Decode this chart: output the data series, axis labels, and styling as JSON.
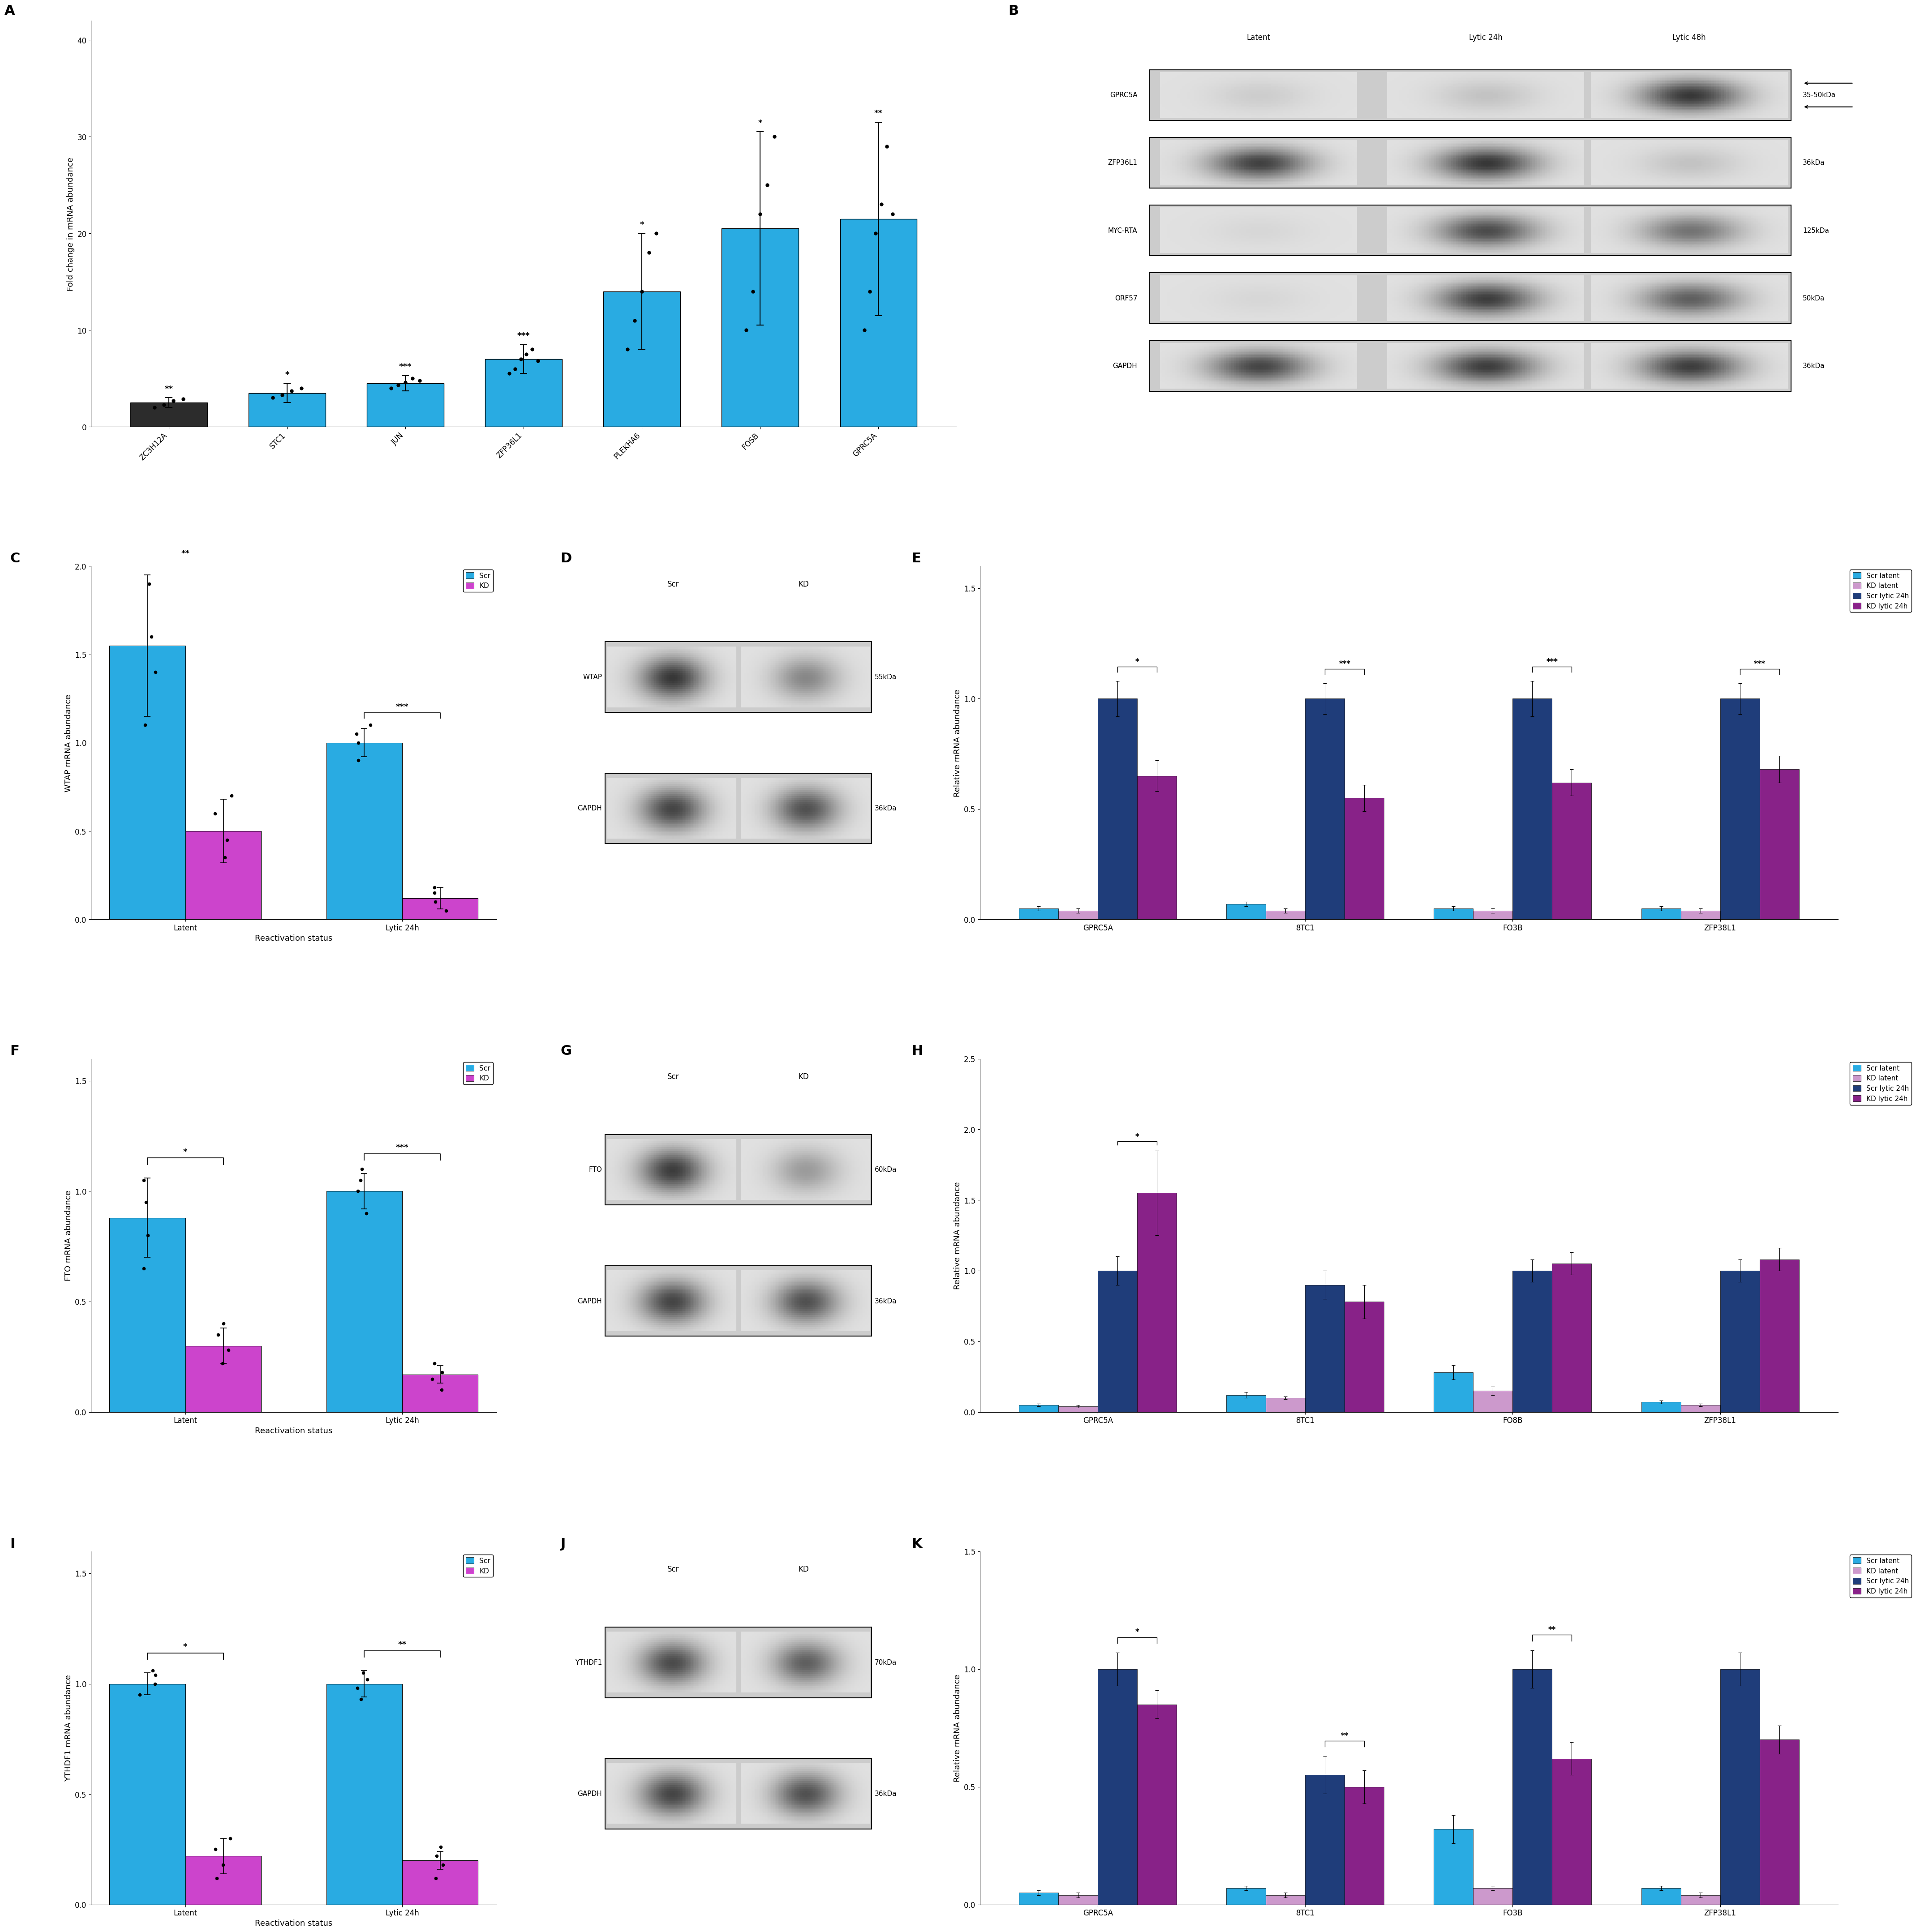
{
  "panel_A": {
    "categories": [
      "ZC3H12A",
      "STC1",
      "JUN",
      "ZFP36L1",
      "PLEKHA6",
      "FOSB",
      "GPRC5A"
    ],
    "values": [
      2.5,
      3.5,
      4.5,
      7.0,
      14.0,
      20.5,
      21.5
    ],
    "errors": [
      0.5,
      1.0,
      0.8,
      1.5,
      6.0,
      10.0,
      10.0
    ],
    "bar_colors": [
      "#2C2C2C",
      "#29ABE2",
      "#29ABE2",
      "#29ABE2",
      "#29ABE2",
      "#29ABE2",
      "#29ABE2"
    ],
    "scatter_points": [
      [
        2.0,
        2.3,
        2.7,
        2.9
      ],
      [
        3.0,
        3.3,
        3.7,
        4.0
      ],
      [
        4.0,
        4.3,
        4.6,
        5.0,
        4.8
      ],
      [
        5.5,
        6.0,
        7.0,
        7.5,
        8.0,
        6.8
      ],
      [
        8.0,
        11.0,
        14.0,
        18.0,
        20.0
      ],
      [
        10.0,
        14.0,
        22.0,
        25.0,
        30.0
      ],
      [
        10.0,
        14.0,
        20.0,
        23.0,
        29.0,
        22.0
      ]
    ],
    "significance": [
      "**",
      "*",
      "***",
      "***",
      "*",
      "*",
      "**"
    ],
    "ylabel": "Fold change in mRNA abundance",
    "ylim": [
      0,
      42
    ],
    "yticks": [
      0,
      10,
      20,
      30,
      40
    ]
  },
  "panel_C": {
    "groups": [
      "Latent",
      "Lytic 24h"
    ],
    "values": [
      [
        1.55,
        0.5
      ],
      [
        1.0,
        0.12
      ]
    ],
    "errors": [
      [
        0.4,
        0.18
      ],
      [
        0.08,
        0.06
      ]
    ],
    "scatter": [
      [
        [
          1.1,
          1.4,
          1.6,
          1.9
        ],
        [
          0.35,
          0.45,
          0.6,
          0.7
        ]
      ],
      [
        [
          0.9,
          1.0,
          1.05,
          1.1
        ],
        [
          0.05,
          0.1,
          0.15,
          0.18
        ]
      ]
    ],
    "colors": [
      "#29ABE2",
      "#CC44CC"
    ],
    "ylabel": "WTAP mRNA abundance",
    "ylim": [
      0,
      2.0
    ],
    "yticks": [
      0.0,
      0.5,
      1.0,
      1.5,
      2.0
    ],
    "xlabel": "Reactivation status",
    "significance_between": [
      "**",
      "***"
    ],
    "legend": [
      "Scr",
      "KD"
    ]
  },
  "panel_E": {
    "gene_groups": [
      "GPRC5A",
      "8TC1",
      "FO3B",
      "ZFP38L1"
    ],
    "bar_values": [
      [
        0.05,
        0.04,
        1.0,
        0.65
      ],
      [
        0.07,
        0.04,
        1.0,
        0.55
      ],
      [
        0.05,
        0.04,
        1.0,
        0.62
      ],
      [
        0.05,
        0.04,
        1.0,
        0.68
      ]
    ],
    "errors": [
      [
        0.01,
        0.01,
        0.08,
        0.07
      ],
      [
        0.01,
        0.01,
        0.07,
        0.06
      ],
      [
        0.01,
        0.01,
        0.08,
        0.06
      ],
      [
        0.01,
        0.01,
        0.07,
        0.06
      ]
    ],
    "colors": [
      "#29ABE2",
      "#CC99CC",
      "#1F3D7A",
      "#882288"
    ],
    "ylabel": "Relative mRNA abundance",
    "ylim": [
      0,
      1.6
    ],
    "yticks": [
      0.0,
      0.5,
      1.0,
      1.5
    ],
    "legend": [
      "Scr latent",
      "KD latent",
      "Scr lytic 24h",
      "KD lytic 24h"
    ],
    "significance": [
      "*",
      "***",
      "***",
      "***"
    ]
  },
  "panel_F": {
    "groups": [
      "Latent",
      "Lytic 24h"
    ],
    "values": [
      [
        0.88,
        0.3
      ],
      [
        1.0,
        0.17
      ]
    ],
    "errors": [
      [
        0.18,
        0.08
      ],
      [
        0.08,
        0.04
      ]
    ],
    "scatter": [
      [
        [
          0.65,
          0.8,
          0.95,
          1.05
        ],
        [
          0.22,
          0.28,
          0.35,
          0.4
        ]
      ],
      [
        [
          0.9,
          1.0,
          1.05,
          1.1
        ],
        [
          0.1,
          0.15,
          0.18,
          0.22
        ]
      ]
    ],
    "colors": [
      "#29ABE2",
      "#CC44CC"
    ],
    "ylabel": "FTO mRNA abundance",
    "ylim": [
      0,
      1.6
    ],
    "yticks": [
      0.0,
      0.5,
      1.0,
      1.5
    ],
    "xlabel": "Reactivation status",
    "significance_between": [
      "*",
      "***"
    ],
    "legend": [
      "Scr",
      "KD"
    ]
  },
  "panel_H": {
    "gene_groups": [
      "GPRC5A",
      "8TC1",
      "FO8B",
      "ZFP38L1"
    ],
    "bar_values": [
      [
        0.05,
        0.04,
        1.0,
        1.55
      ],
      [
        0.12,
        0.1,
        0.9,
        0.78
      ],
      [
        0.28,
        0.15,
        1.0,
        1.05
      ],
      [
        0.07,
        0.05,
        1.0,
        1.08
      ]
    ],
    "errors": [
      [
        0.01,
        0.01,
        0.1,
        0.3
      ],
      [
        0.02,
        0.01,
        0.1,
        0.12
      ],
      [
        0.05,
        0.03,
        0.08,
        0.08
      ],
      [
        0.01,
        0.01,
        0.08,
        0.08
      ]
    ],
    "colors": [
      "#29ABE2",
      "#CC99CC",
      "#1F3D7A",
      "#882288"
    ],
    "ylabel": "Relative mRNA abundance",
    "ylim": [
      0,
      2.5
    ],
    "yticks": [
      0.0,
      0.5,
      1.0,
      1.5,
      2.0,
      2.5
    ],
    "legend": [
      "Scr latent",
      "KD latent",
      "Scr lytic 24h",
      "KD lytic 24h"
    ],
    "significance": [
      "*",
      null,
      null,
      null
    ]
  },
  "panel_I": {
    "groups": [
      "Latent",
      "Lytic 24h"
    ],
    "values": [
      [
        1.0,
        0.22
      ],
      [
        1.0,
        0.2
      ]
    ],
    "errors": [
      [
        0.05,
        0.08
      ],
      [
        0.06,
        0.04
      ]
    ],
    "scatter": [
      [
        [
          0.95,
          1.0,
          1.04,
          1.06
        ],
        [
          0.12,
          0.18,
          0.25,
          0.3
        ]
      ],
      [
        [
          0.93,
          0.98,
          1.02,
          1.05
        ],
        [
          0.12,
          0.18,
          0.22,
          0.26
        ]
      ]
    ],
    "colors": [
      "#29ABE2",
      "#CC44CC"
    ],
    "ylabel": "YTHDF1 mRNA abundance",
    "ylim": [
      0,
      1.6
    ],
    "yticks": [
      0.0,
      0.5,
      1.0,
      1.5
    ],
    "xlabel": "Reactivation status",
    "significance_between": [
      "*",
      "**"
    ],
    "legend": [
      "Scr",
      "KD"
    ]
  },
  "panel_K": {
    "gene_groups": [
      "GPRC5A",
      "8TC1",
      "FO3B",
      "ZFP38L1"
    ],
    "bar_values": [
      [
        0.05,
        0.04,
        1.0,
        0.85
      ],
      [
        0.07,
        0.04,
        0.55,
        0.5
      ],
      [
        0.32,
        0.07,
        1.0,
        0.62
      ],
      [
        0.07,
        0.04,
        1.0,
        0.7
      ]
    ],
    "errors": [
      [
        0.01,
        0.01,
        0.07,
        0.06
      ],
      [
        0.01,
        0.01,
        0.08,
        0.07
      ],
      [
        0.06,
        0.01,
        0.08,
        0.07
      ],
      [
        0.01,
        0.01,
        0.07,
        0.06
      ]
    ],
    "colors": [
      "#29ABE2",
      "#CC99CC",
      "#1F3D7A",
      "#882288"
    ],
    "ylabel": "Relative mRNA abundance",
    "ylim": [
      0,
      1.5
    ],
    "yticks": [
      0.0,
      0.5,
      1.0,
      1.5
    ],
    "legend": [
      "Scr latent",
      "KD latent",
      "Scr lytic 24h",
      "KD lytic 24h"
    ],
    "significance": [
      "*",
      "**",
      "**",
      null
    ]
  },
  "panel_B": {
    "col_labels": [
      "Latent",
      "Lytic 24h",
      "Lytic 48h"
    ],
    "rows": [
      {
        "label": "GPRC5A",
        "right": "35-50kDa",
        "lanes": [
          0.1,
          0.15,
          0.85
        ],
        "double_arrow": true
      },
      {
        "label": "ZFP36L1",
        "right": "36kDa",
        "lanes": [
          0.8,
          0.85,
          0.15
        ],
        "double_arrow": false
      },
      {
        "label": "MYC-RTA",
        "right": "125kDa",
        "lanes": [
          0.05,
          0.75,
          0.55
        ],
        "double_arrow": false
      },
      {
        "label": "ORF57",
        "right": "50kDa",
        "lanes": [
          0.05,
          0.82,
          0.65
        ],
        "double_arrow": false
      },
      {
        "label": "GAPDH",
        "right": "36kDa",
        "lanes": [
          0.78,
          0.82,
          0.82
        ],
        "double_arrow": false
      }
    ]
  },
  "panel_D": {
    "protein": "WTAP",
    "size": "55kDa",
    "scr_intensity": 0.85,
    "kd_intensity": 0.45
  },
  "panel_G": {
    "protein": "FTO",
    "size": "60kDa",
    "scr_intensity": 0.82,
    "kd_intensity": 0.35
  },
  "panel_J": {
    "protein": "YTHDF1",
    "size": "70kDa",
    "scr_intensity": 0.75,
    "kd_intensity": 0.65
  },
  "background_color": "#FFFFFF",
  "panel_label_size": 22,
  "axis_label_size": 13,
  "tick_label_size": 12,
  "legend_fontsize": 11
}
